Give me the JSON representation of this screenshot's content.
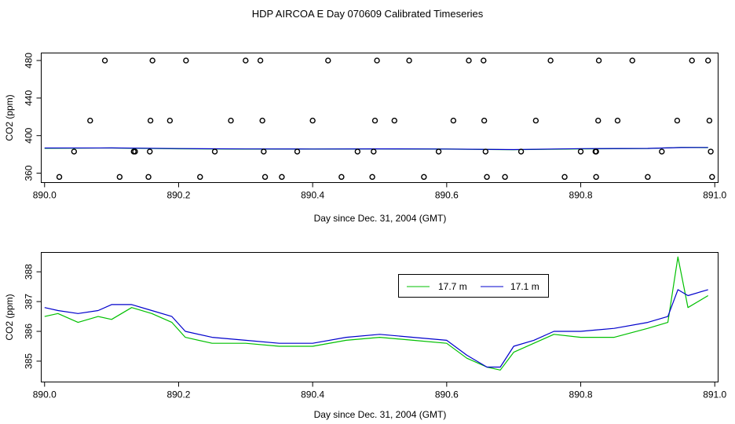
{
  "title": "HDP AIRCOA E  Day 070609  Calibrated Timeseries",
  "colors": {
    "green": "#00c000",
    "blue": "#0000cc",
    "black": "#000000"
  },
  "chart_data": [
    {
      "type": "scatter",
      "xlabel": "Day since Dec. 31, 2004 (GMT)",
      "ylabel": "CO2 (ppm)",
      "xlim": [
        889.995,
        891.005
      ],
      "ylim": [
        350,
        488
      ],
      "xticks": [
        890.0,
        890.2,
        890.4,
        890.6,
        890.8,
        891.0
      ],
      "xtick_labels": [
        "890.0",
        "890.2",
        "890.4",
        "890.6",
        "890.8",
        "891.0"
      ],
      "yticks": [
        360,
        400,
        440,
        480
      ],
      "ytick_labels": [
        "360",
        "400",
        "440",
        "480"
      ],
      "grid": false,
      "series": [
        {
          "color": "#00c000",
          "style": "line",
          "x": [
            890.0,
            890.1,
            890.2,
            890.3,
            890.4,
            890.5,
            890.6,
            890.7,
            890.8,
            890.9,
            890.95,
            890.99
          ],
          "y": [
            386.5,
            386.8,
            386.0,
            385.6,
            385.6,
            385.8,
            385.6,
            385.0,
            385.9,
            386.2,
            387.5,
            387.2
          ]
        },
        {
          "color": "#0000cc",
          "style": "line",
          "x": [
            890.0,
            890.1,
            890.2,
            890.3,
            890.4,
            890.5,
            890.6,
            890.7,
            890.8,
            890.9,
            890.95,
            890.99
          ],
          "y": [
            386.8,
            386.9,
            386.2,
            385.8,
            385.7,
            385.9,
            385.7,
            385.1,
            386.1,
            386.4,
            387.3,
            387.4
          ]
        },
        {
          "color": "#000000",
          "style": "points",
          "x": [
            890.09,
            890.161,
            890.211,
            890.3,
            890.322,
            890.423,
            890.496,
            890.544,
            890.633,
            890.655,
            890.755,
            890.827,
            890.877,
            890.966,
            890.99,
            890.068,
            890.158,
            890.187,
            890.278,
            890.325,
            890.4,
            890.493,
            890.522,
            890.61,
            890.656,
            890.733,
            890.826,
            890.855,
            890.944,
            890.992,
            890.044,
            890.133,
            890.135,
            890.157,
            890.254,
            890.327,
            890.377,
            890.467,
            890.491,
            890.588,
            890.658,
            890.711,
            890.8,
            890.822,
            890.823,
            890.921,
            890.994,
            890.022,
            890.112,
            890.155,
            890.232,
            890.329,
            890.354,
            890.443,
            890.489,
            890.566,
            890.66,
            890.687,
            890.776,
            890.823,
            890.9,
            890.996
          ],
          "y": [
            480,
            480,
            480,
            480,
            480,
            480,
            480,
            480,
            480,
            480,
            480,
            480,
            480,
            480,
            480,
            416,
            416,
            416,
            416,
            416,
            416,
            416,
            416,
            416,
            416,
            416,
            416,
            416,
            416,
            416,
            383,
            383,
            383,
            383,
            383,
            383,
            383,
            383,
            383,
            383,
            383,
            383,
            383,
            383,
            383,
            383,
            383,
            356,
            356,
            356,
            356,
            356,
            356,
            356,
            356,
            356,
            356,
            356,
            356,
            356,
            356,
            356
          ]
        }
      ]
    },
    {
      "type": "line",
      "xlabel": "Day since Dec. 31, 2004 (GMT)",
      "ylabel": "CO2 (ppm)",
      "xlim": [
        889.995,
        891.005
      ],
      "ylim": [
        384.3,
        388.65
      ],
      "xticks": [
        890.0,
        890.2,
        890.4,
        890.6,
        890.8,
        891.0
      ],
      "xtick_labels": [
        "890.0",
        "890.2",
        "890.4",
        "890.6",
        "890.8",
        "891.0"
      ],
      "yticks": [
        385,
        386,
        387,
        388
      ],
      "ytick_labels": [
        "385",
        "386",
        "387",
        "388"
      ],
      "grid": false,
      "legend_position": "top-center",
      "series": [
        {
          "name": "17.7 m",
          "color": "#00c000",
          "x": [
            890.0,
            890.02,
            890.05,
            890.08,
            890.1,
            890.13,
            890.16,
            890.19,
            890.21,
            890.25,
            890.3,
            890.35,
            890.4,
            890.45,
            890.5,
            890.55,
            890.6,
            890.63,
            890.66,
            890.68,
            890.7,
            890.73,
            890.76,
            890.8,
            890.85,
            890.9,
            890.93,
            890.945,
            890.96,
            890.99
          ],
          "y": [
            386.5,
            386.6,
            386.3,
            386.5,
            386.4,
            386.8,
            386.6,
            386.3,
            385.8,
            385.6,
            385.6,
            385.5,
            385.5,
            385.7,
            385.8,
            385.7,
            385.6,
            385.1,
            384.8,
            384.7,
            385.3,
            385.6,
            385.9,
            385.8,
            385.8,
            386.1,
            386.3,
            388.5,
            386.8,
            387.2
          ]
        },
        {
          "name": "17.1 m",
          "color": "#0000cc",
          "x": [
            890.0,
            890.02,
            890.05,
            890.08,
            890.1,
            890.13,
            890.16,
            890.19,
            890.21,
            890.25,
            890.3,
            890.35,
            890.4,
            890.45,
            890.5,
            890.55,
            890.6,
            890.63,
            890.66,
            890.68,
            890.7,
            890.73,
            890.76,
            890.8,
            890.85,
            890.9,
            890.93,
            890.945,
            890.96,
            890.99
          ],
          "y": [
            386.8,
            386.7,
            386.6,
            386.7,
            386.9,
            386.9,
            386.7,
            386.5,
            386.0,
            385.8,
            385.7,
            385.6,
            385.6,
            385.8,
            385.9,
            385.8,
            385.7,
            385.2,
            384.8,
            384.8,
            385.5,
            385.7,
            386.0,
            386.0,
            386.1,
            386.3,
            386.5,
            387.4,
            387.2,
            387.4
          ]
        }
      ]
    }
  ]
}
